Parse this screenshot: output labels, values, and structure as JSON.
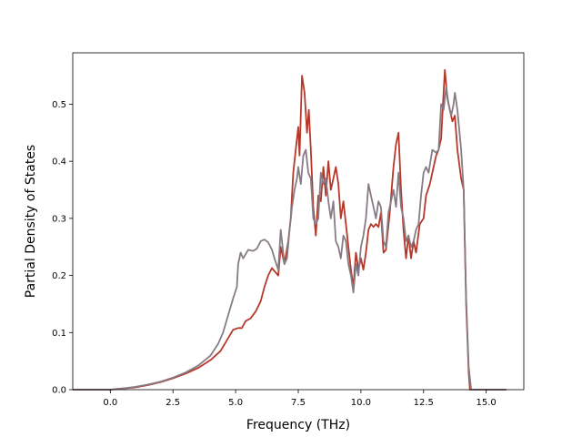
{
  "chart_data": {
    "type": "line",
    "title": "",
    "xlabel": "Frequency (THz)",
    "ylabel": "Partial Density of States",
    "xlim": [
      -1.5,
      16.5
    ],
    "ylim": [
      0.0,
      0.59
    ],
    "xticks": [
      0.0,
      2.5,
      5.0,
      7.5,
      10.0,
      12.5,
      15.0
    ],
    "xtick_labels": [
      "0.0",
      "2.5",
      "5.0",
      "7.5",
      "10.0",
      "12.5",
      "15.0"
    ],
    "yticks": [
      0.0,
      0.1,
      0.2,
      0.3,
      0.4,
      0.5
    ],
    "ytick_labels": [
      "0.0",
      "0.1",
      "0.2",
      "0.3",
      "0.4",
      "0.5"
    ],
    "grid": false,
    "legend": "none",
    "series": [
      {
        "color": "#b5382a",
        "points": [
          [
            -1.5,
            0.0
          ],
          [
            0.0,
            0.0
          ],
          [
            0.5,
            0.002
          ],
          [
            1.0,
            0.004
          ],
          [
            1.5,
            0.008
          ],
          [
            2.0,
            0.013
          ],
          [
            2.5,
            0.02
          ],
          [
            3.0,
            0.028
          ],
          [
            3.5,
            0.038
          ],
          [
            4.0,
            0.052
          ],
          [
            4.4,
            0.068
          ],
          [
            4.7,
            0.09
          ],
          [
            4.9,
            0.105
          ],
          [
            5.1,
            0.108
          ],
          [
            5.25,
            0.108
          ],
          [
            5.4,
            0.12
          ],
          [
            5.6,
            0.125
          ],
          [
            5.8,
            0.137
          ],
          [
            6.0,
            0.155
          ],
          [
            6.15,
            0.18
          ],
          [
            6.3,
            0.2
          ],
          [
            6.45,
            0.213
          ],
          [
            6.6,
            0.205
          ],
          [
            6.7,
            0.2
          ],
          [
            6.8,
            0.25
          ],
          [
            6.95,
            0.22
          ],
          [
            7.1,
            0.26
          ],
          [
            7.2,
            0.3
          ],
          [
            7.3,
            0.38
          ],
          [
            7.4,
            0.42
          ],
          [
            7.5,
            0.46
          ],
          [
            7.55,
            0.41
          ],
          [
            7.65,
            0.55
          ],
          [
            7.75,
            0.52
          ],
          [
            7.85,
            0.45
          ],
          [
            7.92,
            0.49
          ],
          [
            8.0,
            0.42
          ],
          [
            8.1,
            0.32
          ],
          [
            8.2,
            0.27
          ],
          [
            8.3,
            0.34
          ],
          [
            8.4,
            0.33
          ],
          [
            8.5,
            0.39
          ],
          [
            8.6,
            0.34
          ],
          [
            8.7,
            0.4
          ],
          [
            8.8,
            0.35
          ],
          [
            8.9,
            0.37
          ],
          [
            9.0,
            0.39
          ],
          [
            9.1,
            0.36
          ],
          [
            9.2,
            0.3
          ],
          [
            9.3,
            0.33
          ],
          [
            9.4,
            0.29
          ],
          [
            9.5,
            0.25
          ],
          [
            9.6,
            0.21
          ],
          [
            9.7,
            0.18
          ],
          [
            9.8,
            0.24
          ],
          [
            9.9,
            0.21
          ],
          [
            10.0,
            0.23
          ],
          [
            10.1,
            0.21
          ],
          [
            10.2,
            0.24
          ],
          [
            10.3,
            0.28
          ],
          [
            10.4,
            0.29
          ],
          [
            10.5,
            0.285
          ],
          [
            10.6,
            0.29
          ],
          [
            10.7,
            0.285
          ],
          [
            10.8,
            0.31
          ],
          [
            10.9,
            0.24
          ],
          [
            11.0,
            0.245
          ],
          [
            11.15,
            0.31
          ],
          [
            11.3,
            0.39
          ],
          [
            11.4,
            0.43
          ],
          [
            11.5,
            0.45
          ],
          [
            11.6,
            0.35
          ],
          [
            11.7,
            0.28
          ],
          [
            11.8,
            0.23
          ],
          [
            11.9,
            0.27
          ],
          [
            12.0,
            0.23
          ],
          [
            12.1,
            0.26
          ],
          [
            12.2,
            0.24
          ],
          [
            12.35,
            0.29
          ],
          [
            12.5,
            0.3
          ],
          [
            12.6,
            0.34
          ],
          [
            12.75,
            0.36
          ],
          [
            12.9,
            0.39
          ],
          [
            13.0,
            0.41
          ],
          [
            13.1,
            0.42
          ],
          [
            13.2,
            0.44
          ],
          [
            13.3,
            0.52
          ],
          [
            13.35,
            0.56
          ],
          [
            13.45,
            0.51
          ],
          [
            13.55,
            0.49
          ],
          [
            13.65,
            0.47
          ],
          [
            13.75,
            0.48
          ],
          [
            13.85,
            0.42
          ],
          [
            14.0,
            0.37
          ],
          [
            14.1,
            0.35
          ],
          [
            14.2,
            0.15
          ],
          [
            14.3,
            0.03
          ],
          [
            14.35,
            0.0
          ],
          [
            15.8,
            0.0
          ]
        ]
      },
      {
        "color": "#877b85",
        "points": [
          [
            -1.5,
            0.0
          ],
          [
            0.0,
            0.0
          ],
          [
            0.5,
            0.002
          ],
          [
            1.0,
            0.005
          ],
          [
            1.5,
            0.009
          ],
          [
            2.0,
            0.014
          ],
          [
            2.5,
            0.021
          ],
          [
            3.0,
            0.03
          ],
          [
            3.5,
            0.042
          ],
          [
            4.0,
            0.06
          ],
          [
            4.3,
            0.08
          ],
          [
            4.5,
            0.1
          ],
          [
            4.7,
            0.13
          ],
          [
            4.9,
            0.16
          ],
          [
            5.05,
            0.18
          ],
          [
            5.1,
            0.22
          ],
          [
            5.2,
            0.24
          ],
          [
            5.3,
            0.23
          ],
          [
            5.5,
            0.245
          ],
          [
            5.7,
            0.243
          ],
          [
            5.85,
            0.247
          ],
          [
            6.0,
            0.26
          ],
          [
            6.15,
            0.263
          ],
          [
            6.3,
            0.258
          ],
          [
            6.45,
            0.245
          ],
          [
            6.55,
            0.23
          ],
          [
            6.7,
            0.21
          ],
          [
            6.8,
            0.28
          ],
          [
            6.95,
            0.22
          ],
          [
            7.05,
            0.23
          ],
          [
            7.15,
            0.28
          ],
          [
            7.25,
            0.32
          ],
          [
            7.35,
            0.35
          ],
          [
            7.45,
            0.37
          ],
          [
            7.5,
            0.39
          ],
          [
            7.6,
            0.36
          ],
          [
            7.7,
            0.41
          ],
          [
            7.8,
            0.42
          ],
          [
            7.9,
            0.38
          ],
          [
            8.0,
            0.37
          ],
          [
            8.1,
            0.3
          ],
          [
            8.2,
            0.29
          ],
          [
            8.3,
            0.3
          ],
          [
            8.4,
            0.38
          ],
          [
            8.5,
            0.36
          ],
          [
            8.6,
            0.37
          ],
          [
            8.7,
            0.33
          ],
          [
            8.8,
            0.3
          ],
          [
            8.9,
            0.33
          ],
          [
            9.0,
            0.26
          ],
          [
            9.1,
            0.25
          ],
          [
            9.2,
            0.23
          ],
          [
            9.3,
            0.27
          ],
          [
            9.4,
            0.26
          ],
          [
            9.5,
            0.22
          ],
          [
            9.6,
            0.2
          ],
          [
            9.7,
            0.17
          ],
          [
            9.8,
            0.22
          ],
          [
            9.9,
            0.2
          ],
          [
            10.0,
            0.25
          ],
          [
            10.1,
            0.27
          ],
          [
            10.2,
            0.3
          ],
          [
            10.3,
            0.36
          ],
          [
            10.4,
            0.34
          ],
          [
            10.5,
            0.32
          ],
          [
            10.6,
            0.3
          ],
          [
            10.7,
            0.33
          ],
          [
            10.8,
            0.32
          ],
          [
            10.9,
            0.26
          ],
          [
            11.0,
            0.25
          ],
          [
            11.1,
            0.31
          ],
          [
            11.2,
            0.33
          ],
          [
            11.3,
            0.35
          ],
          [
            11.4,
            0.32
          ],
          [
            11.5,
            0.38
          ],
          [
            11.6,
            0.32
          ],
          [
            11.7,
            0.3
          ],
          [
            11.8,
            0.26
          ],
          [
            11.9,
            0.27
          ],
          [
            12.0,
            0.25
          ],
          [
            12.1,
            0.26
          ],
          [
            12.2,
            0.28
          ],
          [
            12.3,
            0.29
          ],
          [
            12.4,
            0.34
          ],
          [
            12.5,
            0.38
          ],
          [
            12.6,
            0.39
          ],
          [
            12.7,
            0.38
          ],
          [
            12.85,
            0.42
          ],
          [
            13.0,
            0.415
          ],
          [
            13.1,
            0.42
          ],
          [
            13.2,
            0.5
          ],
          [
            13.3,
            0.49
          ],
          [
            13.4,
            0.53
          ],
          [
            13.5,
            0.5
          ],
          [
            13.6,
            0.48
          ],
          [
            13.7,
            0.5
          ],
          [
            13.75,
            0.52
          ],
          [
            13.85,
            0.49
          ],
          [
            14.0,
            0.42
          ],
          [
            14.1,
            0.35
          ],
          [
            14.2,
            0.16
          ],
          [
            14.3,
            0.04
          ],
          [
            14.4,
            0.0
          ],
          [
            15.8,
            0.0
          ]
        ]
      }
    ]
  }
}
